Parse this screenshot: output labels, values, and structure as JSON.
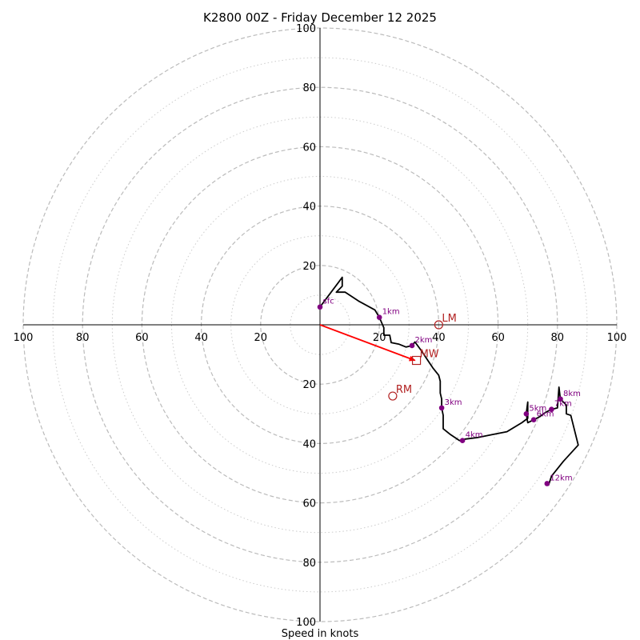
{
  "chart_data": {
    "type": "hodograph",
    "title": "K2800 00Z - Friday December 12 2025",
    "xlabel": "Speed in knots",
    "units": "knots",
    "max_speed": 100,
    "ring_major": [
      20,
      40,
      60,
      80,
      100
    ],
    "ring_minor": [
      10,
      30,
      50,
      70,
      90
    ],
    "tick_values": [
      20,
      40,
      60,
      80,
      100
    ],
    "colors": {
      "trace": "#000000",
      "levels": "#800080",
      "motion": "#b22222",
      "shear": "#ff0000",
      "grid": "#bbbbbb",
      "axis": "#000000"
    },
    "trace": [
      [
        0,
        6
      ],
      [
        3,
        10
      ],
      [
        6,
        14
      ],
      [
        7.5,
        16
      ],
      [
        7.5,
        13
      ],
      [
        5.5,
        11
      ],
      [
        8.5,
        11
      ],
      [
        13,
        8
      ],
      [
        18.5,
        5
      ],
      [
        20,
        2.5
      ],
      [
        21.5,
        -1
      ],
      [
        21.5,
        -3.5
      ],
      [
        23.5,
        -3.5
      ],
      [
        24,
        -6
      ],
      [
        26.5,
        -6.5
      ],
      [
        29,
        -7.5
      ],
      [
        31,
        -7
      ],
      [
        32,
        -5.8
      ],
      [
        34,
        -8.5
      ],
      [
        36,
        -11.5
      ],
      [
        38,
        -14.5
      ],
      [
        40,
        -17
      ],
      [
        40.5,
        -19
      ],
      [
        40.5,
        -23
      ],
      [
        41,
        -25
      ],
      [
        41,
        -28
      ],
      [
        41.5,
        -30.5
      ],
      [
        41.5,
        -35
      ],
      [
        44,
        -37
      ],
      [
        47,
        -39
      ],
      [
        49,
        -38.5
      ],
      [
        53,
        -38
      ],
      [
        58,
        -37
      ],
      [
        63,
        -36
      ],
      [
        68,
        -33
      ],
      [
        70,
        -31.5
      ],
      [
        70,
        -26
      ],
      [
        69.5,
        -30
      ],
      [
        70,
        -33
      ],
      [
        72,
        -32
      ],
      [
        74,
        -31
      ],
      [
        76,
        -29.5
      ],
      [
        78,
        -28.5
      ],
      [
        80,
        -28
      ],
      [
        80.5,
        -21
      ],
      [
        81,
        -25
      ],
      [
        83,
        -27
      ],
      [
        83,
        -30
      ],
      [
        84.5,
        -30.5
      ],
      [
        87,
        -40.5
      ],
      [
        82,
        -46
      ],
      [
        78,
        -51
      ],
      [
        77,
        -54
      ],
      [
        76.5,
        -53.5
      ]
    ],
    "levels": [
      {
        "label": "sfc",
        "u": 0,
        "v": 6
      },
      {
        "label": "1km",
        "u": 20,
        "v": 2.5
      },
      {
        "label": "2km",
        "u": 31,
        "v": -7
      },
      {
        "label": "3km",
        "u": 41,
        "v": -28
      },
      {
        "label": "4km",
        "u": 48,
        "v": -39
      },
      {
        "label": "5km",
        "u": 69.5,
        "v": -30
      },
      {
        "label": "6km",
        "u": 72,
        "v": -32
      },
      {
        "label": "7km",
        "u": 78,
        "v": -28.5
      },
      {
        "label": "8km",
        "u": 81,
        "v": -25
      },
      {
        "label": "12km",
        "u": 76.5,
        "v": -53.5
      }
    ],
    "storm_motion": [
      {
        "label": "LM",
        "marker": "circle",
        "u": 40,
        "v": 0
      },
      {
        "label": "MW",
        "marker": "square",
        "u": 32.5,
        "v": -12
      },
      {
        "label": "RM",
        "marker": "circle",
        "u": 24.5,
        "v": -24
      }
    ],
    "shear_vector": {
      "from": [
        0,
        0
      ],
      "to": [
        32,
        -12
      ]
    }
  }
}
